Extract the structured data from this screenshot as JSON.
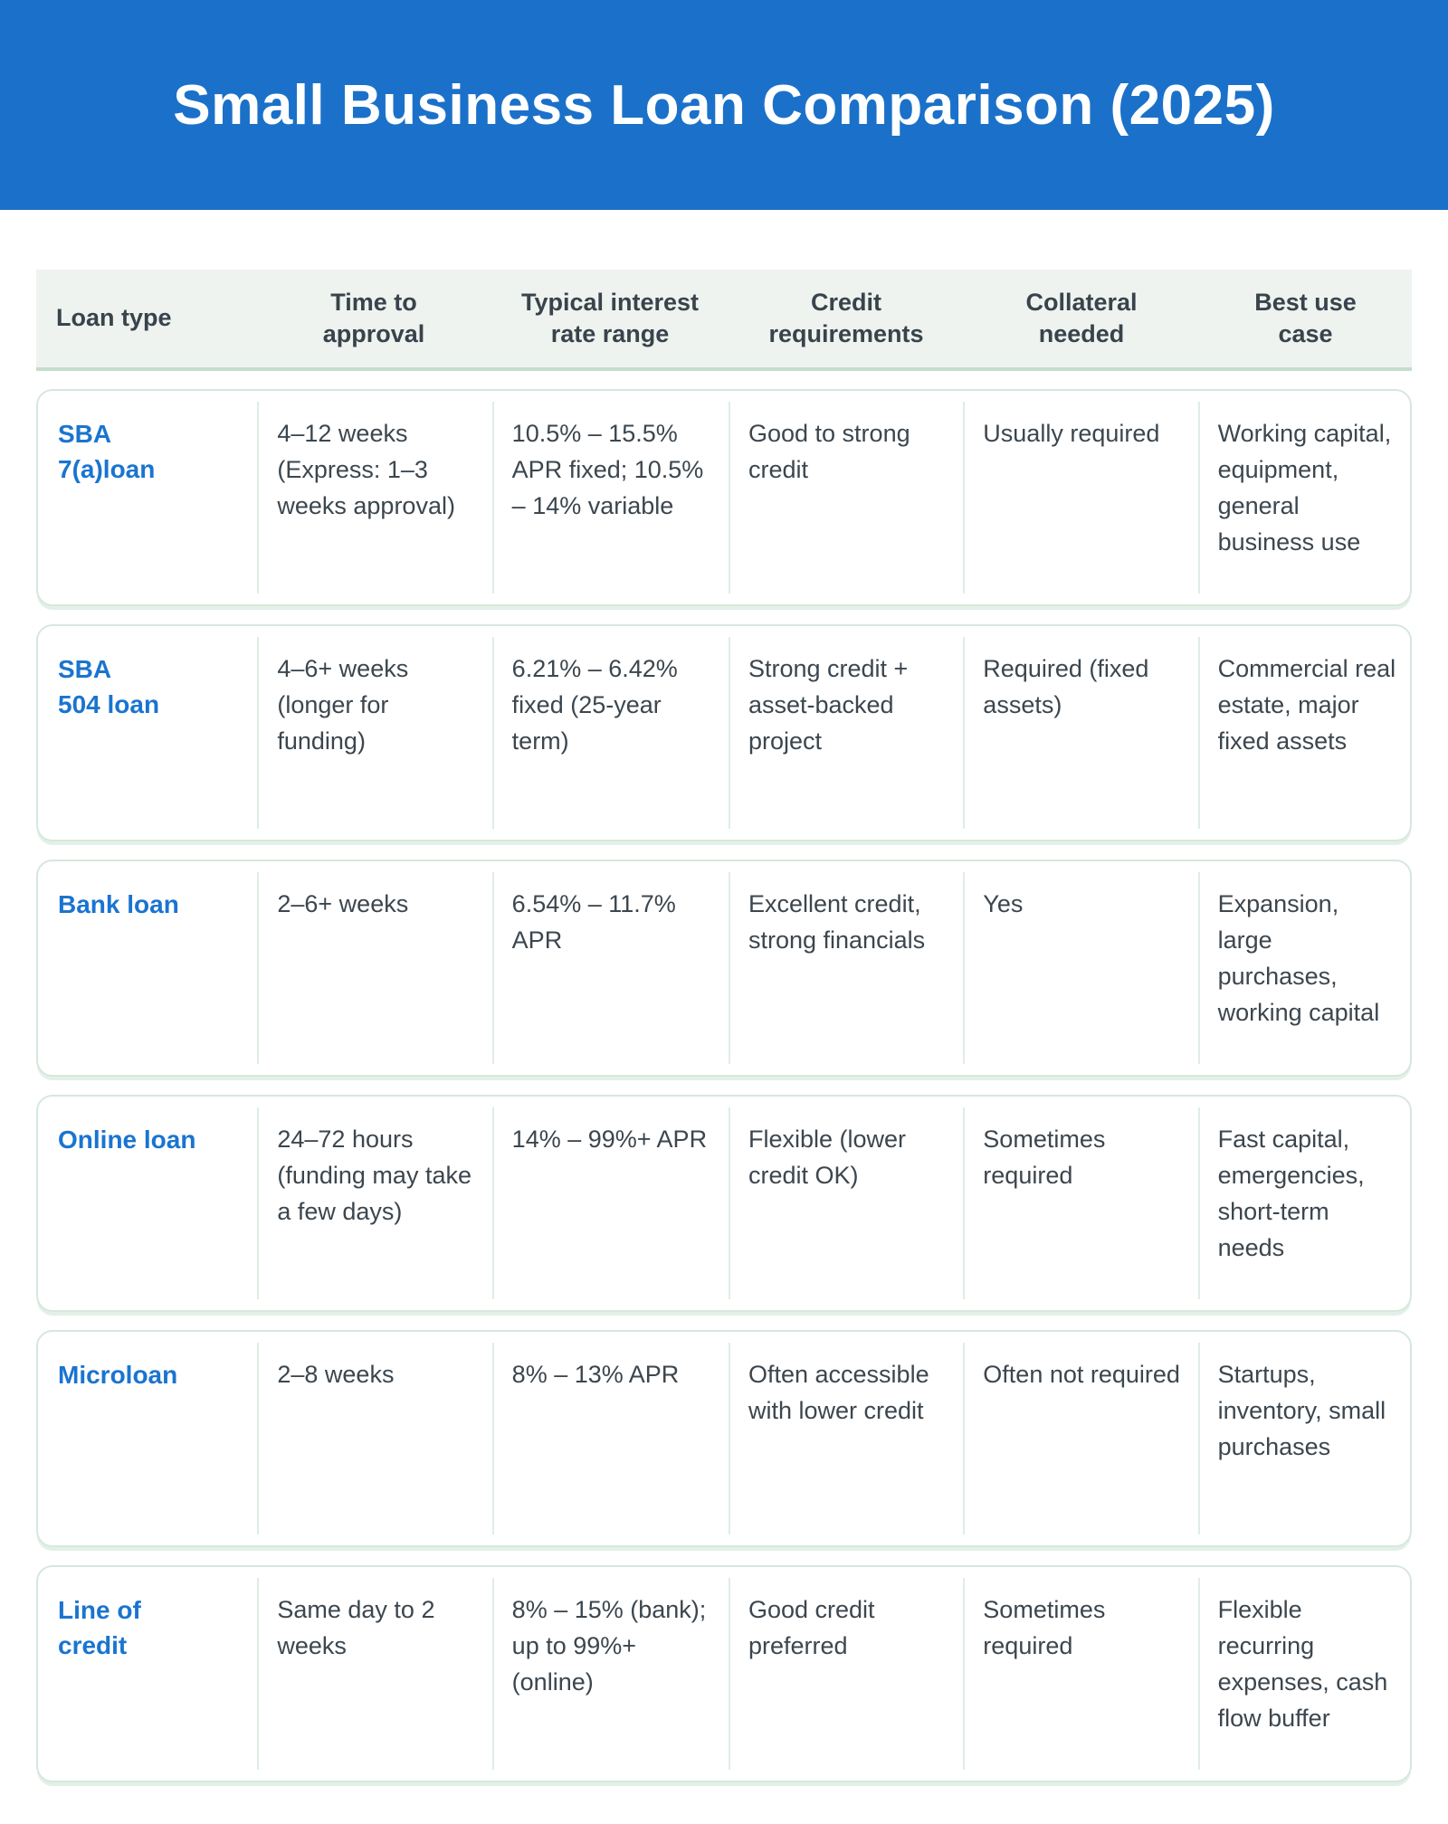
{
  "colors": {
    "banner_background": "#1b71c9",
    "banner_text": "#ffffff",
    "loan_name_accent": "#1a74d0",
    "header_row_background": "#eef3f0",
    "header_row_border": "#c5ddcb",
    "card_border": "#d6e8dc",
    "body_text": "#3c464e"
  },
  "chart_data": {
    "type": "table",
    "title": "Small Business Loan Comparison (2025)",
    "columns": [
      {
        "label": "Loan type"
      },
      {
        "label": "Time to\napproval"
      },
      {
        "label": "Typical interest\nrate range"
      },
      {
        "label": "Credit\nrequirements"
      },
      {
        "label": "Collateral\nneeded"
      },
      {
        "label": "Best use\ncase"
      }
    ],
    "rows": [
      {
        "loan_type": "SBA\n7(a)loan",
        "time_to_approval": "4–12 weeks (Express: 1–3 weeks approval)",
        "interest_rate_range": "10.5% – 15.5% APR fixed; 10.5% – 14% variable",
        "credit_requirements": "Good to strong credit",
        "collateral_needed": "Usually required",
        "best_use_case": "Working capital, equipment, general business use"
      },
      {
        "loan_type": "SBA\n504 loan",
        "time_to_approval": "4–6+ weeks (longer for funding)",
        "interest_rate_range": "6.21% – 6.42% fixed (25-year term)",
        "credit_requirements": "Strong credit + asset-backed project",
        "collateral_needed": "Required (fixed assets)",
        "best_use_case": "Commercial real estate, major fixed assets"
      },
      {
        "loan_type": "Bank loan",
        "time_to_approval": "2–6+ weeks",
        "interest_rate_range": "6.54% – 11.7% APR",
        "credit_requirements": "Excellent credit, strong financials",
        "collateral_needed": "Yes",
        "best_use_case": "Expansion, large purchases, working capital"
      },
      {
        "loan_type": "Online loan",
        "time_to_approval": "24–72 hours (funding may take a few days)",
        "interest_rate_range": "14% – 99%+ APR",
        "credit_requirements": "Flexible (lower credit OK)",
        "collateral_needed": "Sometimes required",
        "best_use_case": "Fast capital, emergencies, short-term needs"
      },
      {
        "loan_type": "Microloan",
        "time_to_approval": "2–8 weeks",
        "interest_rate_range": "8% – 13% APR",
        "credit_requirements": "Often accessible with lower credit",
        "collateral_needed": "Often not required",
        "best_use_case": "Startups, inventory, small purchases"
      },
      {
        "loan_type": "Line of\ncredit",
        "time_to_approval": "Same day to 2 weeks",
        "interest_rate_range": "8% – 15% (bank); up to 99%+ (online)",
        "credit_requirements": "Good credit preferred",
        "collateral_needed": "Sometimes required",
        "best_use_case": "Flexible recurring expenses, cash flow buffer"
      }
    ]
  }
}
